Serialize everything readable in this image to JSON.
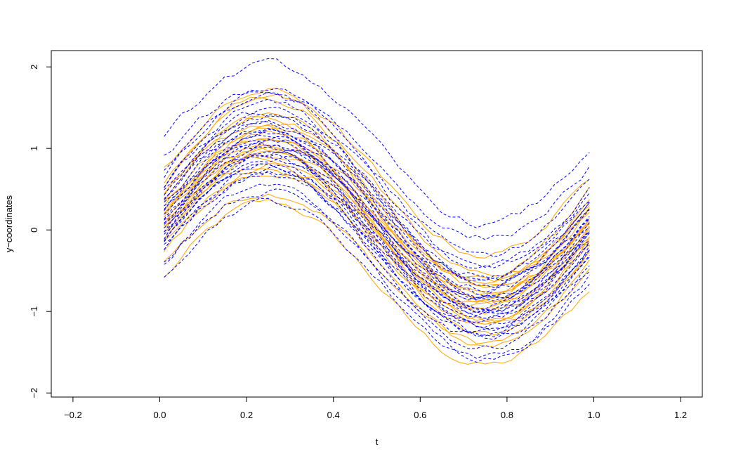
{
  "chart_data": {
    "type": "line",
    "title": "",
    "xlabel": "t",
    "ylabel": "y−coordinates",
    "xlim": [
      -0.25,
      1.25
    ],
    "ylim": [
      -2.05,
      2.2
    ],
    "x_ticks": [
      -0.2,
      0.0,
      0.2,
      0.4,
      0.6,
      0.8,
      1.0,
      1.2
    ],
    "x_tick_labels": [
      "−0.2",
      "0.0",
      "0.2",
      "0.4",
      "0.6",
      "0.8",
      "1.0",
      "1.2"
    ],
    "y_ticks": [
      -2,
      -1,
      0,
      1,
      2
    ],
    "y_tick_labels": [
      "−2",
      "−1",
      "0",
      "1",
      "2"
    ],
    "grid": false,
    "legend": "none",
    "x_domain": [
      0.01,
      0.99
    ],
    "samples_per_curve": 50,
    "series_groups": [
      {
        "style": "solid",
        "color": "#FFA500",
        "curve_model": "y = offset + amplitude * sin(2*pi*t)",
        "offsets": [
          -0.66,
          -0.46,
          -0.34,
          -0.22,
          -0.18,
          -0.12,
          -0.08,
          -0.04,
          -0.01,
          0.02,
          0.05,
          0.08,
          0.12,
          0.15,
          0.18,
          0.22,
          0.26,
          0.3,
          0.34,
          0.38,
          0.45,
          0.55,
          0.7
        ],
        "amplitudes": [
          1.0,
          0.92,
          1.08,
          0.95,
          1.1,
          1.0,
          0.9,
          1.05,
          0.98,
          1.12,
          0.93,
          1.02,
          0.88,
          1.07,
          0.96,
          1.03,
          0.91,
          1.09,
          0.97,
          1.04,
          1.15,
          1.1,
          1.0
        ]
      },
      {
        "style": "dashed",
        "color": "#0000FF",
        "curve_model": "y = offset + amplitude * sin(2*pi*t)",
        "offsets": [
          -0.6,
          -0.5,
          -0.42,
          -0.35,
          -0.3,
          -0.26,
          -0.22,
          -0.18,
          -0.15,
          -0.12,
          -0.09,
          -0.06,
          -0.03,
          0.0,
          0.03,
          0.06,
          0.09,
          0.12,
          0.15,
          0.18,
          0.21,
          0.24,
          0.28,
          0.32,
          0.36,
          0.4,
          0.45,
          0.5,
          0.58,
          0.68,
          0.82,
          1.05
        ],
        "amplitudes": [
          0.95,
          1.05,
          0.9,
          1.1,
          1.0,
          0.93,
          1.07,
          0.98,
          1.12,
          0.88,
          1.03,
          0.96,
          1.08,
          0.92,
          1.0,
          1.06,
          0.94,
          1.1,
          0.97,
          1.02,
          0.9,
          1.05,
          0.99,
          1.08,
          0.93,
          1.01,
          1.1,
          0.95,
          1.05,
          1.0,
          0.92,
          0.98
        ]
      }
    ]
  }
}
